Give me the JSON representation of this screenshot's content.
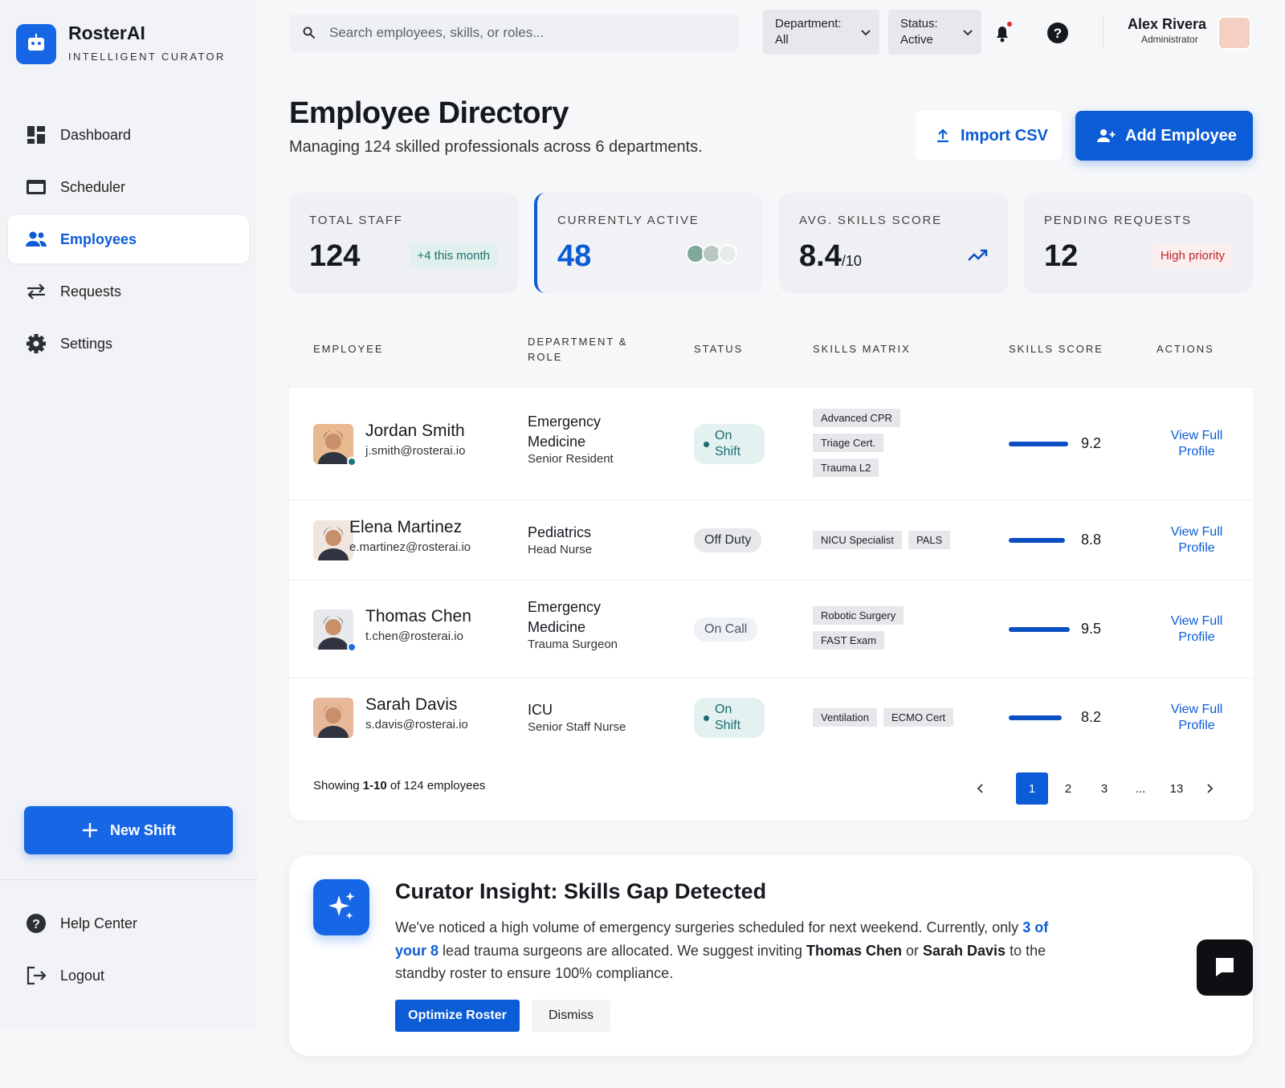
{
  "sidebar": {
    "brand": "RosterAI",
    "tagline": "INTELLIGENT CURATOR",
    "nav": [
      "Dashboard",
      "Scheduler",
      "Employees",
      "Requests",
      "Settings"
    ],
    "active_nav": 2,
    "new_shift": "New Shift",
    "footer_nav": [
      "Help Center",
      "Logout"
    ]
  },
  "header": {
    "search_placeholder": "Search employees, skills, or roles...",
    "filters": [
      {
        "label": "Department:",
        "value": "All"
      },
      {
        "label": "Status:",
        "value": "Active"
      }
    ],
    "user": {
      "name": "Alex Rivera",
      "role": "Administrator"
    }
  },
  "page": {
    "title": "Employee Directory",
    "subtitle": "Managing 124 skilled professionals across 6 departments.",
    "actions": [
      "Import CSV",
      "Add Employee"
    ]
  },
  "stats": [
    {
      "label": "TOTAL STAFF",
      "value": 124,
      "note": "+4 this month",
      "note_color": "#1f6f6a",
      "note_bg": "#dff0ee"
    },
    {
      "label": "CURRENTLY ACTIVE",
      "value": 48,
      "value_color": "#0b5cd6"
    },
    {
      "label": "AVG. SKILLS SCORE",
      "value": 8.4,
      "suffix": "/10"
    },
    {
      "label": "PENDING REQUESTS",
      "value": 12,
      "note": "High priority",
      "note_color": "#c0262d",
      "note_bg": "#fbeeee"
    }
  ],
  "table": {
    "columns": [
      "EMPLOYEE",
      "DEPARTMENT & ROLE",
      "STATUS",
      "SKILLS MATRIX",
      "SKILLS SCORE",
      "ACTIONS"
    ],
    "rows": [
      {
        "name": "Jordan Smith",
        "email": "j.smith@rosterai.io",
        "department": "Emergency Medicine",
        "role": "Senior Resident",
        "status": "On Shift",
        "status_color": "#1a6b6b",
        "status_bg": "#e3f1f1",
        "status_dot": true,
        "presence_color": "#1a7a75",
        "skills": [
          "Advanced CPR",
          "Triage Cert.",
          "Trauma L2"
        ],
        "skills_stacked": true,
        "score": 9.2,
        "action": "View Full Profile"
      },
      {
        "name": "Elena Martinez",
        "email": "e.martinez@rosterai.io",
        "department": "Pediatrics",
        "role": "Head Nurse",
        "status": "Off Duty",
        "status_color": "#2b2f36",
        "status_bg": "#e6e8eb",
        "status_dot": false,
        "skills": [
          "NICU Specialist",
          "PALS"
        ],
        "skills_stacked": false,
        "score": 8.8,
        "action": "View Full Profile"
      },
      {
        "name": "Thomas Chen",
        "email": "t.chen@rosterai.io",
        "department": "Emergency Medicine",
        "role": "Trauma Surgeon",
        "status": "On Call",
        "status_color": "#4a5563",
        "status_bg": "#eef2f6",
        "status_dot": false,
        "presence_color": "#1c6fe0",
        "skills": [
          "Robotic Surgery",
          "FAST Exam"
        ],
        "skills_stacked": true,
        "score": 9.5,
        "action": "View Full Profile"
      },
      {
        "name": "Sarah Davis",
        "email": "s.davis@rosterai.io",
        "department": "ICU",
        "role": "Senior Staff Nurse",
        "status": "On Shift",
        "status_color": "#1a6b6b",
        "status_bg": "#e3f1f1",
        "status_dot": true,
        "skills": [
          "Ventilation",
          "ECMO Cert"
        ],
        "skills_stacked": false,
        "score": 8.2,
        "action": "View Full Profile"
      }
    ]
  },
  "pagination": {
    "summary": [
      "Showing ",
      "1-10",
      " of 124 employees"
    ],
    "pages": [
      1,
      2,
      3,
      "...",
      13
    ],
    "current": 0
  },
  "insight": {
    "title": "Curator Insight: Skills Gap Detected",
    "text": [
      "We've noticed a high volume of emergency surgeries scheduled for next weekend. Currently, only ",
      "3 of your 8",
      " lead trauma surgeons are allocated. We suggest inviting ",
      "Thomas Chen",
      " or ",
      "Sarah Davis",
      " to the standby roster to ensure 100% compliance."
    ],
    "actions": [
      "Optimize Roster",
      "Dismiss"
    ]
  }
}
